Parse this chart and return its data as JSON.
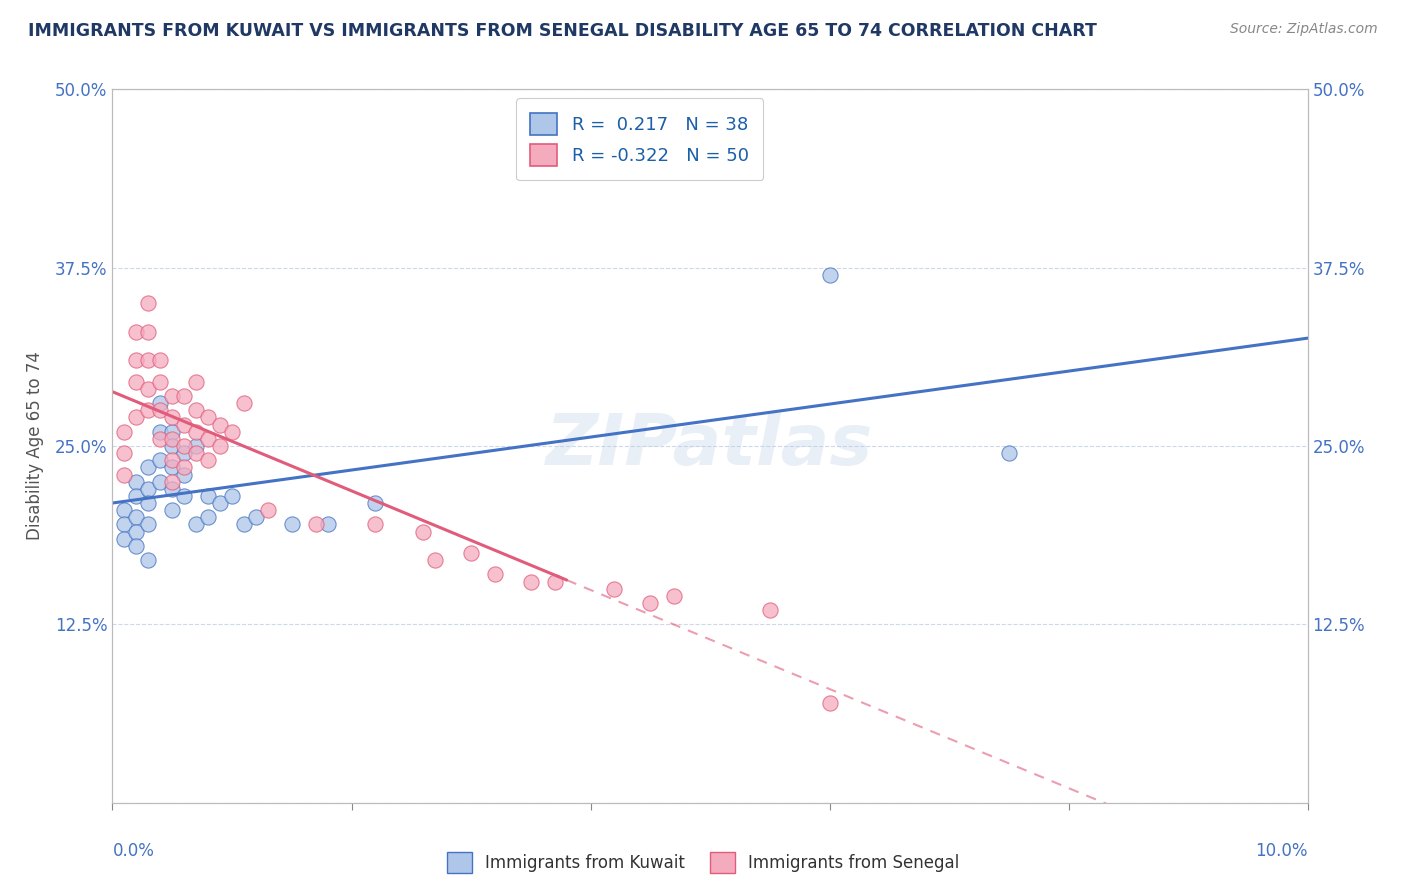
{
  "title": "IMMIGRANTS FROM KUWAIT VS IMMIGRANTS FROM SENEGAL DISABILITY AGE 65 TO 74 CORRELATION CHART",
  "source": "Source: ZipAtlas.com",
  "ylabel": "Disability Age 65 to 74",
  "xlim": [
    0.0,
    0.1
  ],
  "ylim": [
    0.0,
    0.5
  ],
  "xticks": [
    0.0,
    0.02,
    0.04,
    0.06,
    0.08,
    0.1
  ],
  "yticks": [
    0.0,
    0.125,
    0.25,
    0.375,
    0.5
  ],
  "ytick_labels": [
    "",
    "12.5%",
    "25.0%",
    "37.5%",
    "50.0%"
  ],
  "kuwait_R": 0.217,
  "kuwait_N": 38,
  "senegal_R": -0.322,
  "senegal_N": 50,
  "kuwait_color": "#aec6e8",
  "senegal_color": "#f4abbe",
  "kuwait_line_color": "#4472c4",
  "senegal_line_color": "#e05c7a",
  "background_color": "#ffffff",
  "grid_color": "#c8d4e8",
  "watermark": "ZIPatlas",
  "title_color": "#1f3864",
  "axis_color": "#4472c4",
  "legend_R_color": "#1a5fa8",
  "kuwait_x": [
    0.001,
    0.001,
    0.001,
    0.002,
    0.002,
    0.002,
    0.002,
    0.002,
    0.003,
    0.003,
    0.003,
    0.003,
    0.003,
    0.004,
    0.004,
    0.004,
    0.004,
    0.005,
    0.005,
    0.005,
    0.005,
    0.005,
    0.006,
    0.006,
    0.006,
    0.007,
    0.007,
    0.008,
    0.008,
    0.009,
    0.01,
    0.011,
    0.012,
    0.015,
    0.018,
    0.022,
    0.06,
    0.075
  ],
  "kuwait_y": [
    0.205,
    0.195,
    0.185,
    0.225,
    0.215,
    0.2,
    0.19,
    0.18,
    0.235,
    0.22,
    0.21,
    0.195,
    0.17,
    0.28,
    0.26,
    0.24,
    0.225,
    0.26,
    0.25,
    0.235,
    0.22,
    0.205,
    0.245,
    0.23,
    0.215,
    0.25,
    0.195,
    0.215,
    0.2,
    0.21,
    0.215,
    0.195,
    0.2,
    0.195,
    0.195,
    0.21,
    0.37,
    0.245
  ],
  "senegal_x": [
    0.001,
    0.001,
    0.001,
    0.002,
    0.002,
    0.002,
    0.002,
    0.003,
    0.003,
    0.003,
    0.003,
    0.003,
    0.004,
    0.004,
    0.004,
    0.004,
    0.005,
    0.005,
    0.005,
    0.005,
    0.005,
    0.006,
    0.006,
    0.006,
    0.006,
    0.007,
    0.007,
    0.007,
    0.007,
    0.008,
    0.008,
    0.008,
    0.009,
    0.009,
    0.01,
    0.011,
    0.013,
    0.017,
    0.022,
    0.026,
    0.027,
    0.03,
    0.032,
    0.035,
    0.037,
    0.042,
    0.045,
    0.047,
    0.055,
    0.06
  ],
  "senegal_y": [
    0.26,
    0.245,
    0.23,
    0.33,
    0.31,
    0.295,
    0.27,
    0.35,
    0.33,
    0.31,
    0.29,
    0.275,
    0.31,
    0.295,
    0.275,
    0.255,
    0.285,
    0.27,
    0.255,
    0.24,
    0.225,
    0.285,
    0.265,
    0.25,
    0.235,
    0.295,
    0.275,
    0.26,
    0.245,
    0.27,
    0.255,
    0.24,
    0.265,
    0.25,
    0.26,
    0.28,
    0.205,
    0.195,
    0.195,
    0.19,
    0.17,
    0.175,
    0.16,
    0.155,
    0.155,
    0.15,
    0.14,
    0.145,
    0.135,
    0.07
  ],
  "senegal_solid_xlim": [
    0.0,
    0.038
  ],
  "senegal_dashed_xlim": [
    0.038,
    0.1
  ]
}
